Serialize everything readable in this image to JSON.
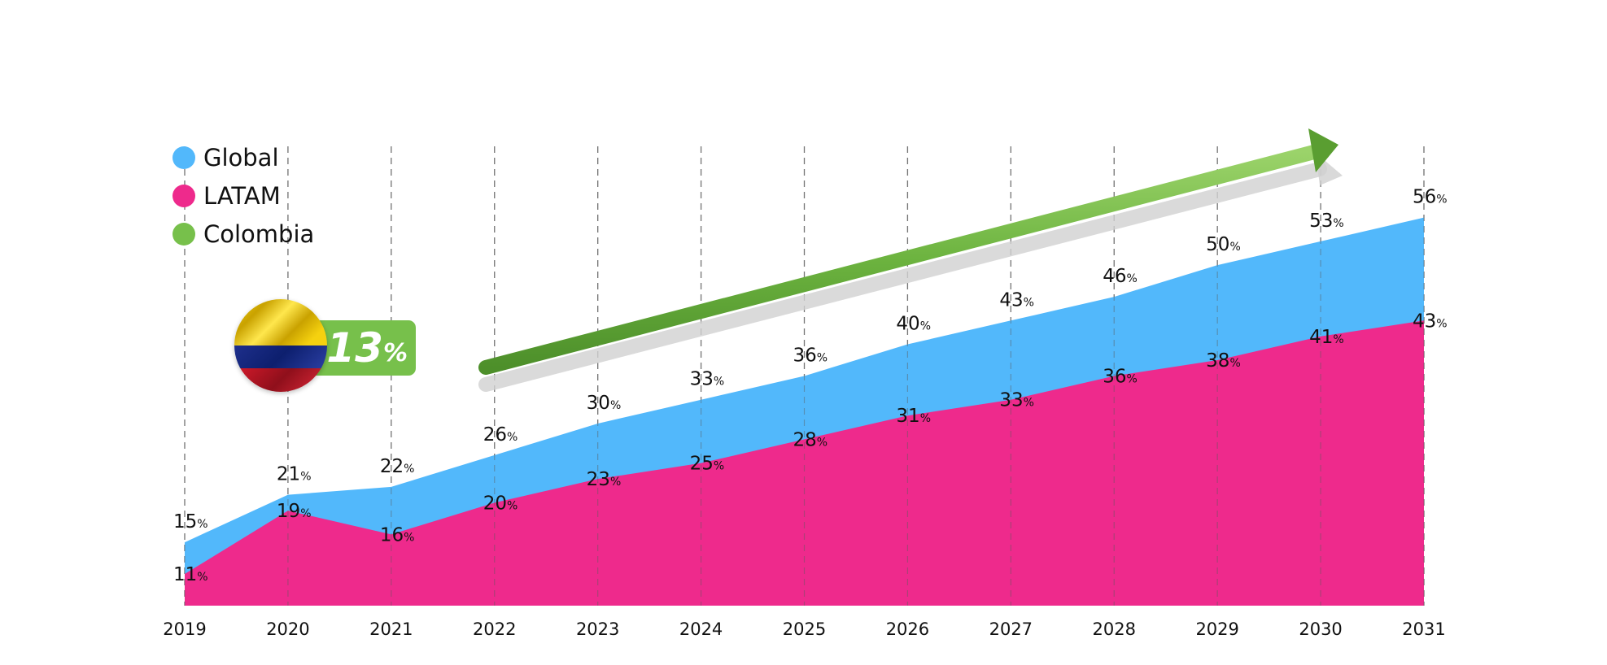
{
  "chart_data": {
    "type": "area",
    "categories": [
      "2019",
      "2020",
      "2021",
      "2022",
      "2023",
      "2024",
      "2025",
      "2026",
      "2027",
      "2028",
      "2029",
      "2030",
      "2031"
    ],
    "series": [
      {
        "name": "Global",
        "color": "#52b8fb",
        "values": [
          15,
          21,
          22,
          26,
          30,
          33,
          36,
          40,
          43,
          46,
          50,
          53,
          56
        ],
        "labels": [
          "15%",
          "21%",
          "22%",
          "26%",
          "30%",
          "33%",
          "36%",
          "40%",
          "43%",
          "46%",
          "50%",
          "53%",
          "56%"
        ]
      },
      {
        "name": "LATAM",
        "color": "#ee2a8c",
        "values": [
          11,
          19,
          16,
          20,
          23,
          25,
          28,
          31,
          33,
          36,
          38,
          41,
          43
        ],
        "labels": [
          "11%",
          "19%",
          "16%",
          "20%",
          "23%",
          "25%",
          "28%",
          "31%",
          "33%",
          "36%",
          "38%",
          "41%",
          "43%"
        ]
      },
      {
        "name": "Colombia",
        "color": "#77c04b"
      }
    ],
    "ylim": [
      7,
      65
    ],
    "grid": "vertical dashed",
    "legend_position": "top-left",
    "annotation": {
      "value": "13",
      "unit": "%",
      "color": "#77c04b"
    }
  }
}
